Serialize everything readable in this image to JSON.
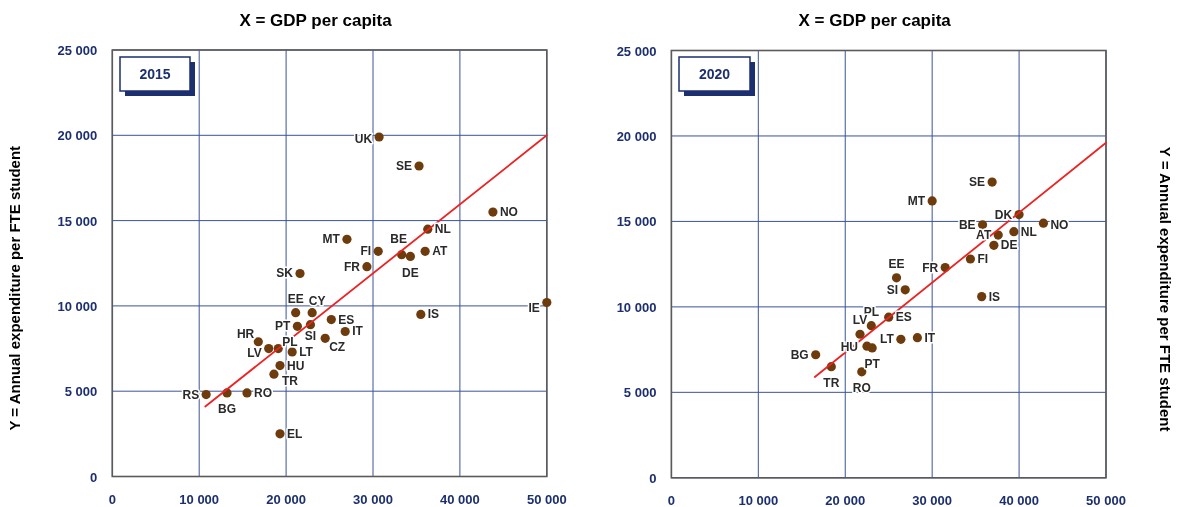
{
  "chart_data": [
    {
      "type": "scatter",
      "title": "X = GDP per capita",
      "subtitle": "2015",
      "ylabel": "Y = Annual expenditure per FTE student",
      "xlim": [
        0,
        50000
      ],
      "ylim": [
        0,
        25000
      ],
      "xticks": [
        0,
        {
          "value": 10000,
          "label": "10 000"
        },
        {
          "value": 20000,
          "label": "20 000"
        },
        {
          "value": 30000,
          "label": "30 000"
        },
        {
          "value": 40000,
          "label": "40 000"
        },
        {
          "value": 50000,
          "label": "50 000"
        }
      ],
      "yticks": [
        0,
        {
          "value": 5000,
          "label": "5 000"
        },
        {
          "value": 10000,
          "label": "10 000"
        },
        {
          "value": 15000,
          "label": "15 000"
        },
        {
          "value": 20000,
          "label": "20 000"
        },
        {
          "value": 25000,
          "label": "25 000"
        }
      ],
      "grid": true,
      "series": [
        {
          "color": "#6e3b0c",
          "marker": "circle",
          "x": [
            30700,
            35300,
            43800,
            36300,
            27000,
            30600,
            33300,
            34300,
            36000,
            29300,
            21600,
            50000,
            21100,
            23000,
            25200,
            35500,
            21300,
            22800,
            26800,
            24500,
            16800,
            18000,
            19100,
            20700,
            19300,
            18600,
            10800,
            13200,
            15500,
            19300
          ],
          "values": [
            19900,
            18200,
            15500,
            14500,
            13900,
            13200,
            13000,
            12900,
            13200,
            12300,
            11900,
            10200,
            9600,
            9600,
            9200,
            9500,
            8800,
            8900,
            8500,
            8100,
            7900,
            7500,
            7500,
            7300,
            6500,
            6000,
            4800,
            4900,
            4900,
            2500
          ],
          "value_labels": [
            "UK",
            "SE",
            "NO",
            "NL",
            "MT",
            "FI",
            "BE",
            "DE",
            "AT",
            "FR",
            "SK",
            "IE",
            "EE",
            "CY",
            "ES",
            "IS",
            "PT",
            "SI",
            "IT",
            "CZ",
            "HR",
            "LV",
            "PL",
            "LT",
            "HU",
            "TR",
            "RS",
            "BG",
            "RO",
            "EL"
          ]
        },
        {
          "type": "line",
          "color": "#ee2222",
          "x": [
            10700,
            50000
          ],
          "values": [
            4100,
            20000
          ]
        }
      ]
    },
    {
      "type": "scatter",
      "title": "X = GDP per capita",
      "subtitle": "2020",
      "ylabel": "Y = Annual expenditure per FTE student",
      "xlim": [
        0,
        50000
      ],
      "ylim": [
        0,
        25000
      ],
      "xticks": [
        0,
        {
          "value": 10000,
          "label": "10 000"
        },
        {
          "value": 20000,
          "label": "20 000"
        },
        {
          "value": 30000,
          "label": "30 000"
        },
        {
          "value": 40000,
          "label": "40 000"
        },
        {
          "value": 50000,
          "label": "50 000"
        }
      ],
      "yticks": [
        0,
        {
          "value": 5000,
          "label": "5 000"
        },
        {
          "value": 10000,
          "label": "10 000"
        },
        {
          "value": 15000,
          "label": "15 000"
        },
        {
          "value": 20000,
          "label": "20 000"
        },
        {
          "value": 25000,
          "label": "25 000"
        }
      ],
      "grid": true,
      "series": [
        {
          "color": "#6e3b0c",
          "marker": "circle",
          "x": [
            36900,
            30000,
            40000,
            42800,
            35800,
            37600,
            39400,
            37100,
            34400,
            31500,
            25900,
            26900,
            35700,
            25000,
            23000,
            21700,
            26400,
            28300,
            22500,
            23100,
            18400,
            16600,
            21900
          ],
          "values": [
            17300,
            16200,
            15400,
            14900,
            14800,
            14200,
            14400,
            13600,
            12800,
            12300,
            11700,
            11000,
            10600,
            9400,
            8900,
            8400,
            8100,
            8200,
            7700,
            7600,
            6500,
            7200,
            6200
          ],
          "value_labels": [
            "SE",
            "MT",
            "DK",
            "NO",
            "BE",
            "AT",
            "NL",
            "DE",
            "FI",
            "FR",
            "EE",
            "SI",
            "IS",
            "ES",
            "PL",
            "LV",
            "LT",
            "IT",
            "HU",
            "PT",
            "TR",
            "BG",
            "RO"
          ]
        },
        {
          "type": "line",
          "color": "#ee2222",
          "x": [
            16500,
            50000
          ],
          "values": [
            5900,
            19600
          ]
        }
      ]
    }
  ]
}
